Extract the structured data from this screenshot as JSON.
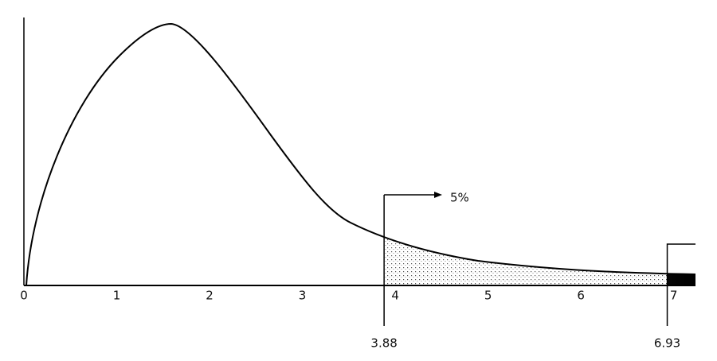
{
  "chart_data": {
    "type": "density",
    "xlim": [
      0,
      7.2
    ],
    "xticks": [
      0,
      1,
      2,
      3,
      4,
      5,
      6,
      7
    ],
    "critical_values": [
      3.88,
      6.93
    ],
    "tail_area": {
      "value": 5,
      "label": "5%"
    }
  }
}
